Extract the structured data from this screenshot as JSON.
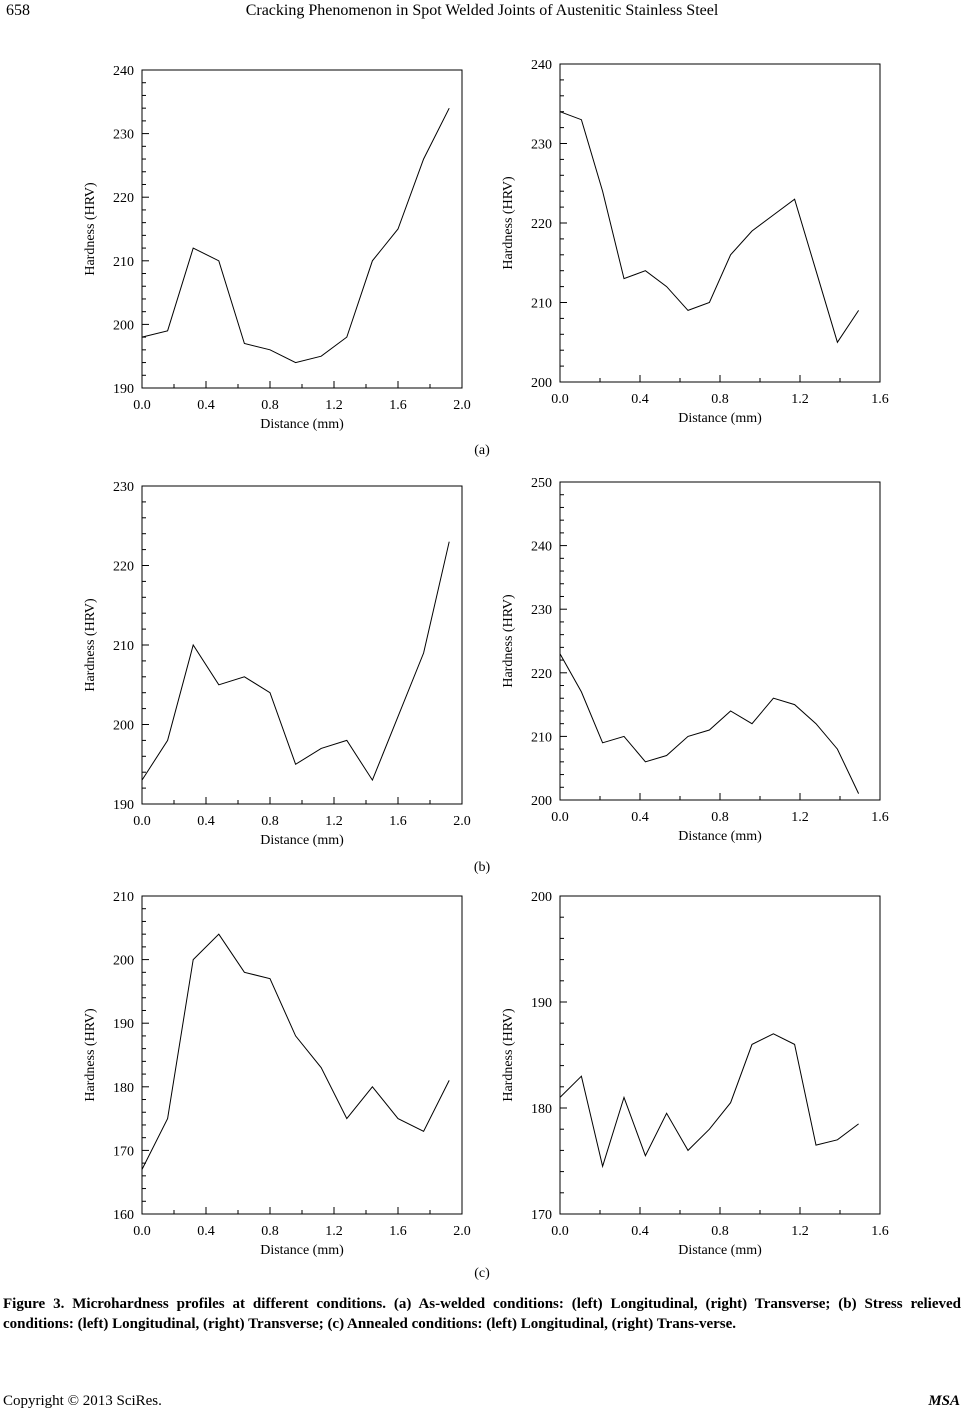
{
  "header": {
    "page_number": "658",
    "running_title": "Cracking Phenomenon in Spot Welded Joints of Austenitic Stainless Steel"
  },
  "subfigure_labels": [
    "(a)",
    "(b)",
    "(c)"
  ],
  "caption": "Figure 3. Microhardness profiles at different conditions. (a) As-welded conditions: (left) Longitudinal, (right) Transverse; (b) Stress relieved conditions: (left) Longitudinal, (right) Transverse; (c) Annealed conditions: (left) Longitudinal, (right) Trans-verse.",
  "footer": {
    "copyright": "Copyright © 2013 SciRes.",
    "journal": "MSA"
  },
  "chart_data": [
    {
      "id": "a-left",
      "type": "line",
      "xlabel": "Distance (mm)",
      "ylabel": "Hardness (HRV)",
      "xlim": [
        0,
        2.0
      ],
      "ylim": [
        190,
        240
      ],
      "xticks": [
        "0.0",
        "0.4",
        "0.8",
        "1.2",
        "1.6",
        "2.0"
      ],
      "yticks": [
        "190",
        "200",
        "210",
        "220",
        "230",
        "240"
      ],
      "x": [
        0,
        0.16,
        0.32,
        0.48,
        0.64,
        0.8,
        0.96,
        1.12,
        1.28,
        1.44,
        1.6,
        1.76,
        1.92
      ],
      "y": [
        198,
        199,
        212,
        210,
        197,
        196,
        194,
        195,
        198,
        210,
        215,
        226,
        234
      ]
    },
    {
      "id": "a-right",
      "type": "line",
      "xlabel": "Distance (mm)",
      "ylabel": "Hardness (HRV)",
      "xlim": [
        0,
        1.6
      ],
      "ylim": [
        200,
        240
      ],
      "xticks": [
        "0.0",
        "0.4",
        "0.8",
        "1.2",
        "1.6"
      ],
      "yticks": [
        "200",
        "210",
        "220",
        "230",
        "240"
      ],
      "x": [
        0,
        0.107,
        0.213,
        0.32,
        0.427,
        0.533,
        0.64,
        0.747,
        0.853,
        0.96,
        1.067,
        1.173,
        1.28,
        1.387,
        1.493
      ],
      "y": [
        234,
        233,
        224,
        213,
        214,
        212,
        209,
        210,
        216,
        219,
        221,
        223,
        214,
        205,
        209
      ]
    },
    {
      "id": "b-left",
      "type": "line",
      "xlabel": "Distance (mm)",
      "ylabel": "Hardness (HRV)",
      "xlim": [
        0,
        2.0
      ],
      "ylim": [
        190,
        230
      ],
      "xticks": [
        "0.0",
        "0.4",
        "0.8",
        "1.2",
        "1.6",
        "2.0"
      ],
      "yticks": [
        "190",
        "200",
        "210",
        "220",
        "230"
      ],
      "x": [
        0,
        0.16,
        0.32,
        0.48,
        0.64,
        0.8,
        0.96,
        1.12,
        1.28,
        1.44,
        1.6,
        1.76,
        1.92
      ],
      "y": [
        193,
        198,
        210,
        205,
        206,
        204,
        195,
        197,
        198,
        193,
        201,
        209,
        223
      ]
    },
    {
      "id": "b-right",
      "type": "line",
      "xlabel": "Distance (mm)",
      "ylabel": "Hardness (HRV)",
      "xlim": [
        0,
        1.6
      ],
      "ylim": [
        200,
        250
      ],
      "xticks": [
        "0.0",
        "0.4",
        "0.8",
        "1.2",
        "1.6"
      ],
      "yticks": [
        "200",
        "210",
        "220",
        "230",
        "240",
        "250"
      ],
      "x": [
        0,
        0.107,
        0.213,
        0.32,
        0.427,
        0.533,
        0.64,
        0.747,
        0.853,
        0.96,
        1.067,
        1.173,
        1.28,
        1.387,
        1.493
      ],
      "y": [
        223,
        217,
        209,
        210,
        206,
        207,
        210,
        211,
        214,
        212,
        216,
        215,
        212,
        208,
        201
      ]
    },
    {
      "id": "c-left",
      "type": "line",
      "xlabel": "Distance (mm)",
      "ylabel": "Hardness (HRV)",
      "xlim": [
        0,
        2.0
      ],
      "ylim": [
        160,
        210
      ],
      "xticks": [
        "0.0",
        "0.4",
        "0.8",
        "1.2",
        "1.6",
        "2.0"
      ],
      "yticks": [
        "160",
        "170",
        "180",
        "190",
        "200",
        "210"
      ],
      "x": [
        0,
        0.16,
        0.32,
        0.48,
        0.64,
        0.8,
        0.96,
        1.12,
        1.28,
        1.44,
        1.6,
        1.76,
        1.92
      ],
      "y": [
        167,
        175,
        200,
        204,
        198,
        197,
        188,
        183,
        175,
        180,
        175,
        173,
        181
      ]
    },
    {
      "id": "c-right",
      "type": "line",
      "xlabel": "Distance (mm)",
      "ylabel": "Hardness (HRV)",
      "xlim": [
        0,
        1.6
      ],
      "ylim": [
        170,
        200
      ],
      "xticks": [
        "0.0",
        "0.4",
        "0.8",
        "1.2",
        "1.6"
      ],
      "yticks": [
        "170",
        "180",
        "190",
        "200"
      ],
      "x": [
        0,
        0.107,
        0.213,
        0.32,
        0.427,
        0.533,
        0.64,
        0.747,
        0.853,
        0.96,
        1.067,
        1.173,
        1.28,
        1.387,
        1.493
      ],
      "y": [
        181,
        183,
        174.5,
        181,
        175.5,
        179.5,
        176,
        178,
        180.5,
        186,
        187,
        186,
        176.5,
        177,
        178.5
      ]
    }
  ]
}
